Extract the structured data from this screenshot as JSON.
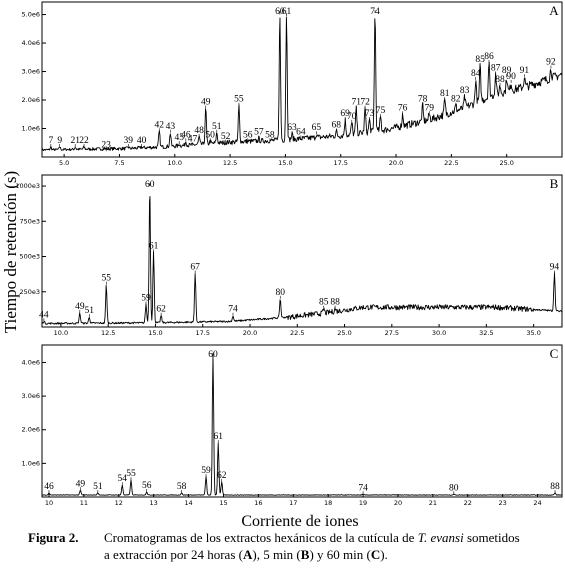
{
  "figure": {
    "ylabel": "Tiempo de retención (s)",
    "xlabel": "Corriente de iones",
    "caption": {
      "label": "Figura 2.",
      "text_before": "Cromatogramas de los extractos hexánicos de la cutícula de ",
      "species": "T. evansi",
      "text_after": " sometidos",
      "line2_a": "a extracción por 24 horas (",
      "A": "A",
      "line2_b": "), 5 min (",
      "B": "B",
      "line2_c": ") y 60 min (",
      "C": "C",
      "line2_d": ")."
    }
  },
  "chart_data": [
    {
      "type": "line",
      "panel": "A",
      "xlim": [
        4.0,
        27.5
      ],
      "ylim": [
        0,
        5.3
      ],
      "y_unit": "e6",
      "xticks": [
        "5.0",
        "7.5",
        "10.0",
        "12.5",
        "15.0",
        "17.5",
        "20.0",
        "22.5",
        "25.0"
      ],
      "xtick_values": [
        5.0,
        7.5,
        10.0,
        12.5,
        15.0,
        17.5,
        20.0,
        22.5,
        25.0
      ],
      "yticks": [
        "1.0e6",
        "2.0e6",
        "3.0e6",
        "4.0e6",
        "5.0e6"
      ],
      "ytick_values": [
        1,
        2,
        3,
        4,
        5
      ],
      "baseline": [
        [
          4.0,
          0.25
        ],
        [
          8.0,
          0.3
        ],
        [
          10.0,
          0.38
        ],
        [
          12.5,
          0.52
        ],
        [
          15.0,
          0.6
        ],
        [
          17.5,
          0.75
        ],
        [
          19.5,
          0.95
        ],
        [
          21.5,
          1.3
        ],
        [
          23.0,
          1.7
        ],
        [
          24.5,
          2.2
        ],
        [
          26.0,
          2.5
        ],
        [
          27.5,
          2.9
        ]
      ],
      "peaks": [
        {
          "id": "7",
          "x": 4.4,
          "y": 0.35
        },
        {
          "id": "9",
          "x": 4.8,
          "y": 0.35
        },
        {
          "id": "21",
          "x": 5.5,
          "y": 0.35
        },
        {
          "id": "22",
          "x": 5.9,
          "y": 0.35
        },
        {
          "id": "23",
          "x": 6.9,
          "y": 0.2
        },
        {
          "id": "39",
          "x": 7.9,
          "y": 0.35
        },
        {
          "id": "40",
          "x": 8.5,
          "y": 0.35
        },
        {
          "id": "42",
          "x": 9.3,
          "y": 0.9
        },
        {
          "id": "43",
          "x": 9.8,
          "y": 0.85
        },
        {
          "id": "45",
          "x": 10.2,
          "y": 0.45
        },
        {
          "id": "46",
          "x": 10.5,
          "y": 0.55
        },
        {
          "id": "47",
          "x": 10.8,
          "y": 0.4
        },
        {
          "id": "48",
          "x": 11.1,
          "y": 0.7
        },
        {
          "id": "49",
          "x": 11.4,
          "y": 1.7
        },
        {
          "id": "50",
          "x": 11.6,
          "y": 0.55
        },
        {
          "id": "51",
          "x": 11.9,
          "y": 0.85
        },
        {
          "id": "52",
          "x": 12.3,
          "y": 0.5
        },
        {
          "id": "55",
          "x": 12.9,
          "y": 1.8
        },
        {
          "id": "56",
          "x": 13.3,
          "y": 0.55
        },
        {
          "id": "57",
          "x": 13.8,
          "y": 0.65
        },
        {
          "id": "58",
          "x": 14.3,
          "y": 0.55
        },
        {
          "id": "60",
          "x": 14.75,
          "y": 5.0
        },
        {
          "id": "61",
          "x": 15.05,
          "y": 4.95
        },
        {
          "id": "63",
          "x": 15.3,
          "y": 0.8
        },
        {
          "id": "64",
          "x": 15.7,
          "y": 0.65
        },
        {
          "id": "65",
          "x": 16.4,
          "y": 0.8
        },
        {
          "id": "68",
          "x": 17.3,
          "y": 0.9
        },
        {
          "id": "69",
          "x": 17.7,
          "y": 1.3
        },
        {
          "id": "70",
          "x": 18.0,
          "y": 1.2
        },
        {
          "id": "71",
          "x": 18.2,
          "y": 1.7
        },
        {
          "id": "72",
          "x": 18.6,
          "y": 1.7
        },
        {
          "id": "73",
          "x": 18.8,
          "y": 1.3
        },
        {
          "id": "74",
          "x": 19.05,
          "y": 5.05
        },
        {
          "id": "75",
          "x": 19.3,
          "y": 1.4
        },
        {
          "id": "76",
          "x": 20.3,
          "y": 1.5
        },
        {
          "id": "78",
          "x": 21.2,
          "y": 1.8
        },
        {
          "id": "79",
          "x": 21.5,
          "y": 1.5
        },
        {
          "id": "81",
          "x": 22.2,
          "y": 2.0
        },
        {
          "id": "82",
          "x": 22.7,
          "y": 1.8
        },
        {
          "id": "83",
          "x": 23.1,
          "y": 2.1
        },
        {
          "id": "84",
          "x": 23.6,
          "y": 2.7
        },
        {
          "id": "85",
          "x": 23.8,
          "y": 3.2
        },
        {
          "id": "86",
          "x": 24.2,
          "y": 3.3
        },
        {
          "id": "87",
          "x": 24.5,
          "y": 2.9
        },
        {
          "id": "88",
          "x": 24.7,
          "y": 2.5
        },
        {
          "id": "89",
          "x": 25.0,
          "y": 2.8
        },
        {
          "id": "90",
          "x": 25.2,
          "y": 2.6
        },
        {
          "id": "91",
          "x": 25.8,
          "y": 2.8
        },
        {
          "id": "92",
          "x": 27.0,
          "y": 3.1
        }
      ]
    },
    {
      "type": "line",
      "panel": "B",
      "xlim": [
        9.0,
        36.5
      ],
      "ylim": [
        0,
        1050
      ],
      "y_unit": "e3",
      "xticks": [
        "10.0",
        "12.5",
        "15.0",
        "17.5",
        "20.0",
        "22.5",
        "25.0",
        "27.5",
        "30.0",
        "32.5",
        "35.0"
      ],
      "xtick_values": [
        10.0,
        12.5,
        15.0,
        17.5,
        20.0,
        22.5,
        25.0,
        27.5,
        30.0,
        32.5,
        35.0
      ],
      "yticks": [
        "250e3",
        "500e3",
        "750e3",
        "1000e3"
      ],
      "ytick_values": [
        250,
        500,
        750,
        1000
      ],
      "baseline": [
        [
          9.0,
          25
        ],
        [
          15.0,
          30
        ],
        [
          19.0,
          40
        ],
        [
          22.0,
          70
        ],
        [
          24.0,
          100
        ],
        [
          26.0,
          140
        ],
        [
          33.0,
          140
        ],
        [
          35.5,
          120
        ],
        [
          36.5,
          110
        ]
      ],
      "peaks": [
        {
          "id": "44",
          "x": 9.1,
          "y": 40
        },
        {
          "id": "49",
          "x": 11.0,
          "y": 100
        },
        {
          "id": "51",
          "x": 11.5,
          "y": 70
        },
        {
          "id": "55",
          "x": 12.4,
          "y": 300
        },
        {
          "id": "59",
          "x": 14.5,
          "y": 160
        },
        {
          "id": "60",
          "x": 14.7,
          "y": 1000
        },
        {
          "id": "61",
          "x": 14.9,
          "y": 530
        },
        {
          "id": "62",
          "x": 15.3,
          "y": 80
        },
        {
          "id": "67",
          "x": 17.1,
          "y": 380
        },
        {
          "id": "74",
          "x": 19.1,
          "y": 80
        },
        {
          "id": "80",
          "x": 21.6,
          "y": 200
        },
        {
          "id": "85",
          "x": 23.9,
          "y": 130
        },
        {
          "id": "88",
          "x": 24.5,
          "y": 130
        },
        {
          "id": "94",
          "x": 36.1,
          "y": 380
        }
      ]
    },
    {
      "type": "line",
      "panel": "C",
      "xlim": [
        9.8,
        24.7
      ],
      "ylim": [
        0,
        4.4
      ],
      "y_unit": "e6",
      "xticks": [
        "10",
        "11",
        "12",
        "13",
        "14",
        "15",
        "16",
        "17",
        "18",
        "19",
        "20",
        "21",
        "22",
        "23",
        "24"
      ],
      "xtick_values": [
        10,
        11,
        12,
        13,
        14,
        15,
        16,
        17,
        18,
        19,
        20,
        21,
        22,
        23,
        24
      ],
      "yticks": [
        "1.0e6",
        "2.0e6",
        "3.0e6",
        "4.0e6"
      ],
      "ytick_values": [
        1,
        2,
        3,
        4
      ],
      "baseline": [
        [
          9.8,
          0.06
        ],
        [
          24.7,
          0.06
        ]
      ],
      "peaks": [
        {
          "id": "46",
          "x": 10.0,
          "y": 0.12
        },
        {
          "id": "49",
          "x": 10.9,
          "y": 0.2
        },
        {
          "id": "51",
          "x": 11.4,
          "y": 0.12
        },
        {
          "id": "54",
          "x": 12.1,
          "y": 0.35
        },
        {
          "id": "55",
          "x": 12.35,
          "y": 0.5
        },
        {
          "id": "56",
          "x": 12.8,
          "y": 0.15
        },
        {
          "id": "58",
          "x": 13.8,
          "y": 0.12
        },
        {
          "id": "59",
          "x": 14.5,
          "y": 0.6
        },
        {
          "id": "60",
          "x": 14.7,
          "y": 4.2
        },
        {
          "id": "61",
          "x": 14.85,
          "y": 1.6
        },
        {
          "id": "62",
          "x": 14.95,
          "y": 0.45
        },
        {
          "id": "74",
          "x": 19.0,
          "y": 0.08
        },
        {
          "id": "80",
          "x": 21.6,
          "y": 0.08
        },
        {
          "id": "88",
          "x": 24.5,
          "y": 0.12
        }
      ]
    }
  ]
}
